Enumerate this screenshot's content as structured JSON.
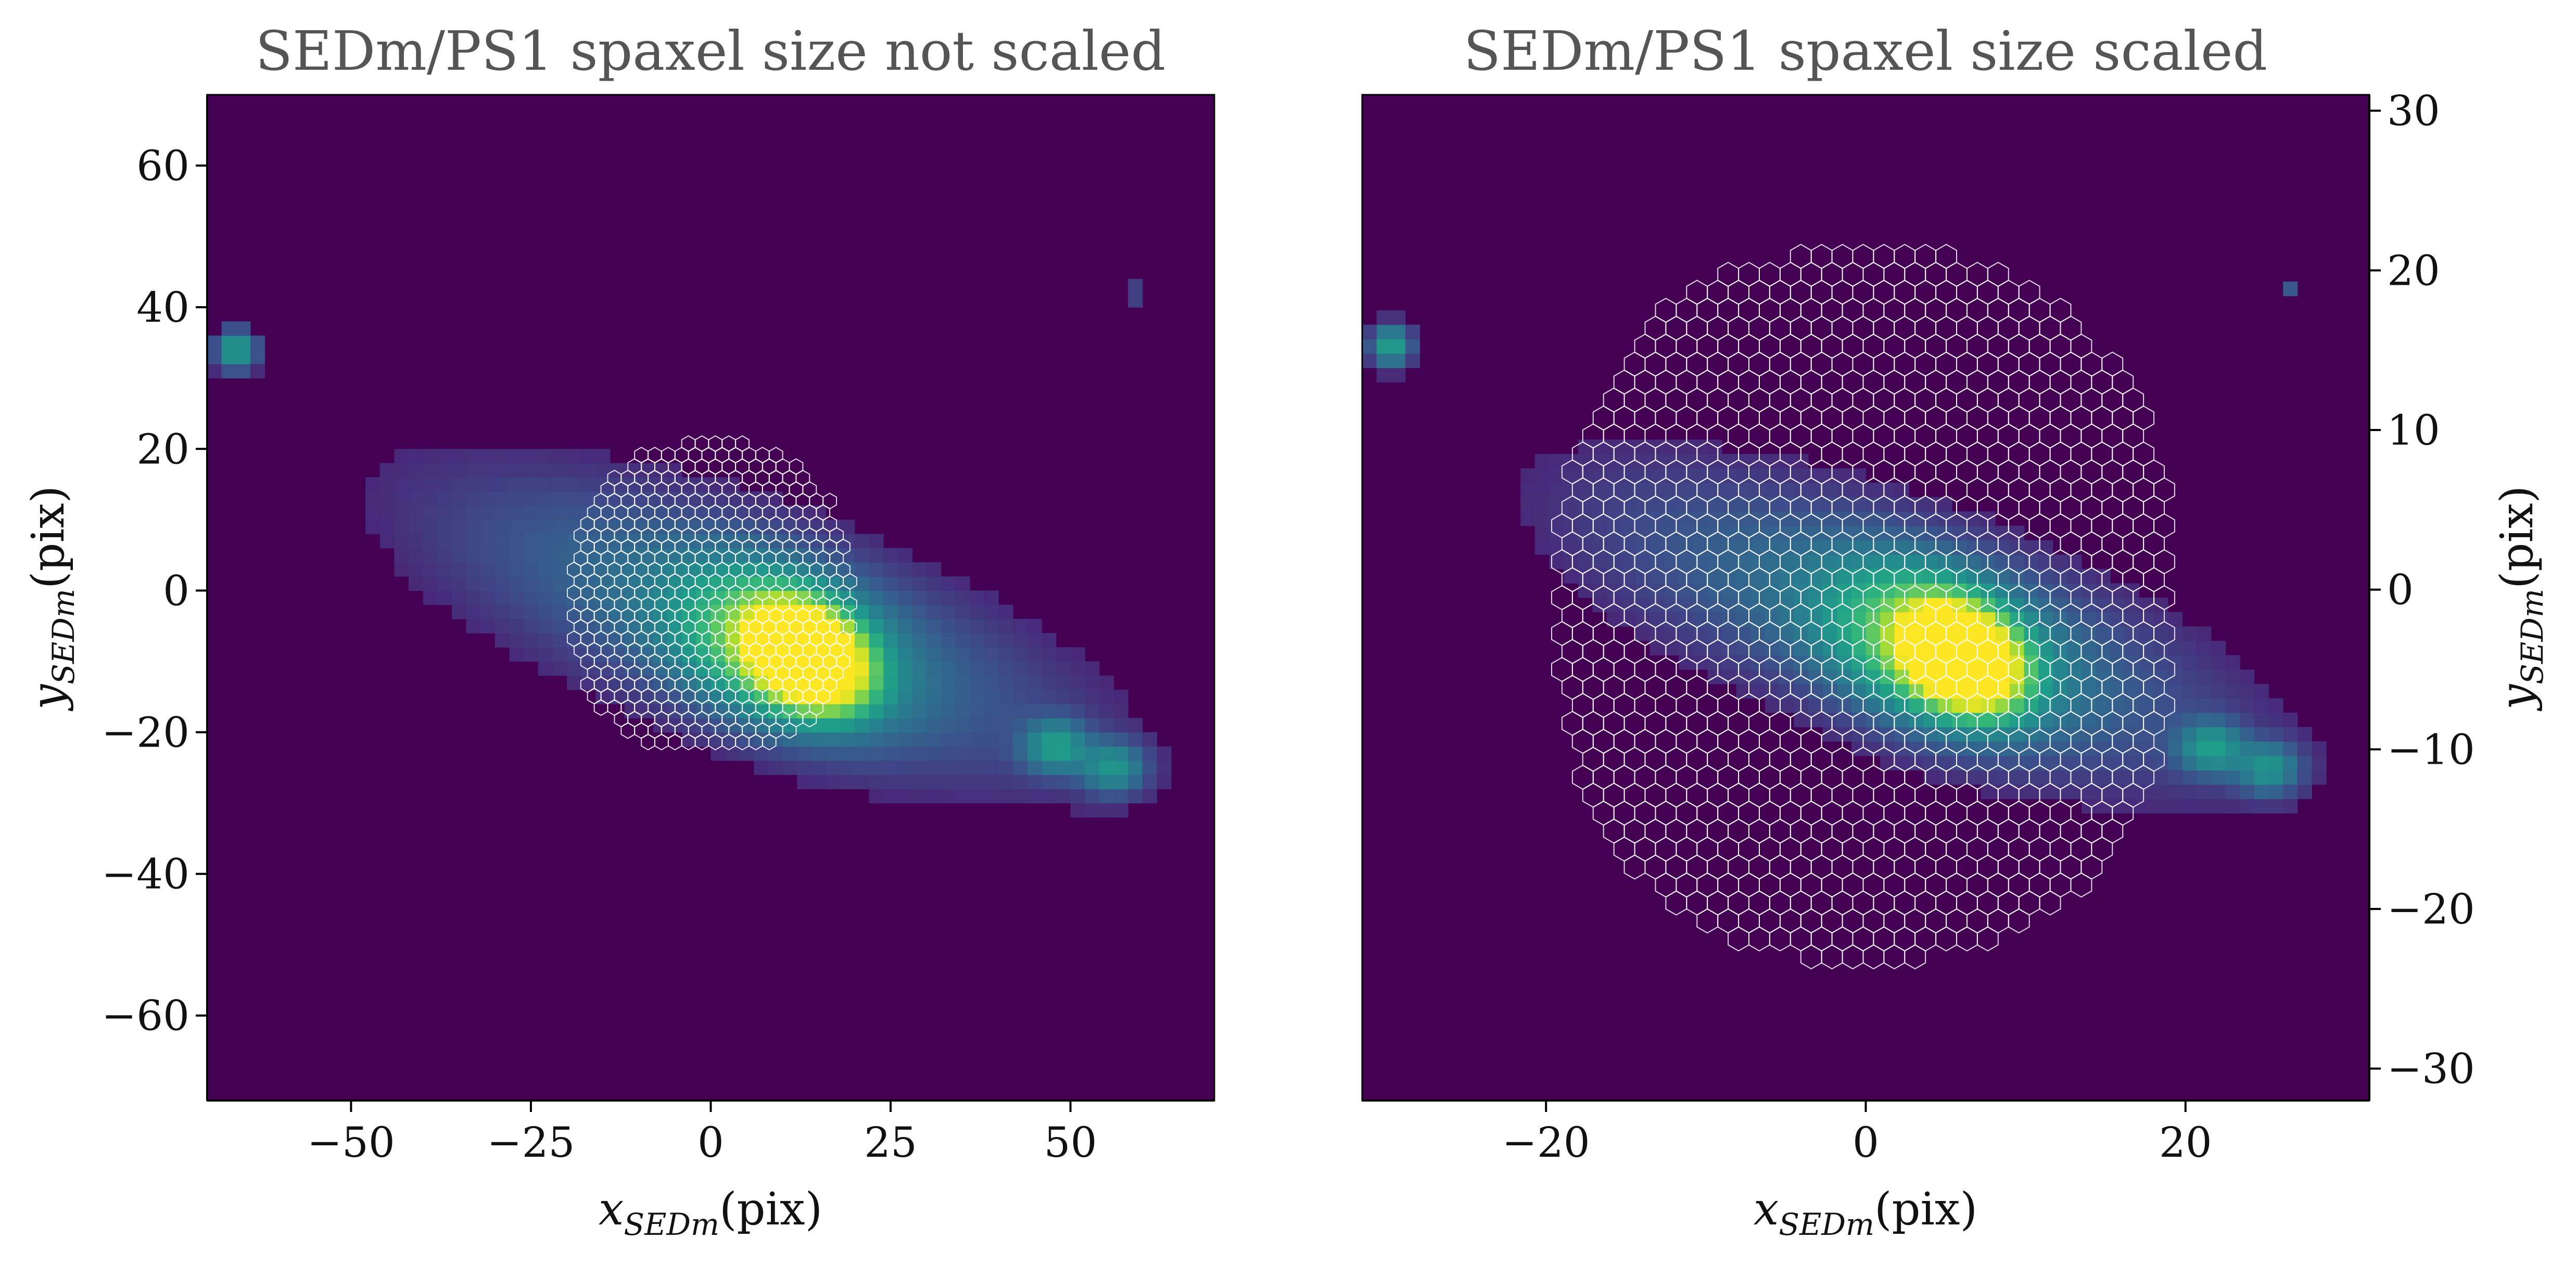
{
  "figure": {
    "colors": {
      "background": "#440154",
      "colormap": [
        "#440154",
        "#482878",
        "#3e4989",
        "#31688e",
        "#26828e",
        "#1f9e89",
        "#35b779",
        "#6ece58",
        "#b5de2b",
        "#fde725"
      ],
      "hexagon_outline": "#ffffff"
    }
  },
  "chart_data": [
    {
      "type": "heatmap",
      "title": "SEDm/PS1 spaxel size not scaled",
      "xlabel": "x_SEDm(pix)",
      "ylabel": "y_SEDm(pix)",
      "xlabel_main": "x",
      "xlabel_sub": "SEDm",
      "xlabel_unit": "(pix)",
      "ylabel_main": "y",
      "ylabel_sub": "SEDm",
      "ylabel_unit": "(pix)",
      "xlim": [
        -70,
        70
      ],
      "ylim": [
        -72,
        70
      ],
      "xticks": [
        -50,
        -25,
        0,
        25,
        50
      ],
      "yticks": [
        -60,
        -40,
        -20,
        0,
        20,
        40,
        60
      ],
      "xtick_labels": [
        "−50",
        "−25",
        "0",
        "25",
        "50"
      ],
      "ytick_labels": [
        "−60",
        "−40",
        "−20",
        "0",
        "20",
        "40",
        "60"
      ],
      "ytick_side": "left",
      "grid": false,
      "pixel_size": 2,
      "image_components": [
        {
          "kind": "core",
          "x": 13,
          "y": -9,
          "sx": 4.5,
          "sy": 3.2,
          "angle_deg": -32,
          "amp": 4.0
        },
        {
          "kind": "bulge",
          "x": 10,
          "y": -8,
          "sx": 9,
          "sy": 6,
          "angle_deg": -25,
          "amp": 0.6
        },
        {
          "kind": "disk",
          "x": 6,
          "y": -5,
          "sx": 32,
          "sy": 10,
          "angle_deg": -20,
          "amp": 0.2
        },
        {
          "kind": "knot",
          "x": 48,
          "y": -22,
          "sx": 3,
          "sy": 2.5,
          "angle_deg": 0,
          "amp": 0.28
        },
        {
          "kind": "knot",
          "x": 56,
          "y": -25,
          "sx": 3,
          "sy": 2.5,
          "angle_deg": 0,
          "amp": 0.26
        },
        {
          "kind": "star",
          "x": -66,
          "y": 34,
          "sx": 2,
          "sy": 2,
          "angle_deg": 0,
          "amp": 0.35
        },
        {
          "kind": "star",
          "x": 59,
          "y": 42,
          "sx": 1.2,
          "sy": 1,
          "angle_deg": 0,
          "amp": 0.12
        }
      ],
      "hexgrid": {
        "center": [
          0,
          -1
        ],
        "radius": 1.08,
        "xlim": [
          -19,
          20
        ],
        "ylim": [
          -23,
          21
        ]
      }
    },
    {
      "type": "heatmap",
      "title": "SEDm/PS1 spaxel size scaled",
      "xlabel": "x_SEDm(pix)",
      "ylabel": "y_SEDm(pix)",
      "xlabel_main": "x",
      "xlabel_sub": "SEDm",
      "xlabel_unit": "(pix)",
      "ylabel_main": "y",
      "ylabel_sub": "SEDm",
      "ylabel_unit": "(pix)",
      "xlim": [
        -31.5,
        31.5
      ],
      "ylim": [
        -32,
        31
      ],
      "xticks": [
        -20,
        0,
        20
      ],
      "yticks": [
        -30,
        -20,
        -10,
        0,
        10,
        20,
        30
      ],
      "xtick_labels": [
        "−20",
        "0",
        "20"
      ],
      "ytick_labels": [
        "−30",
        "−20",
        "−10",
        "0",
        "10",
        "20",
        "30"
      ],
      "ytick_side": "right",
      "grid": false,
      "pixel_size": 0.9,
      "image_components": [
        {
          "kind": "core",
          "x": 5.8,
          "y": -4.1,
          "sx": 2.0,
          "sy": 1.45,
          "angle_deg": -32,
          "amp": 4.0
        },
        {
          "kind": "bulge",
          "x": 4.5,
          "y": -3.6,
          "sx": 4.1,
          "sy": 2.7,
          "angle_deg": -25,
          "amp": 0.6
        },
        {
          "kind": "disk",
          "x": 2.7,
          "y": -2.3,
          "sx": 14.4,
          "sy": 4.5,
          "angle_deg": -20,
          "amp": 0.2
        },
        {
          "kind": "knot",
          "x": 21.6,
          "y": -9.9,
          "sx": 1.35,
          "sy": 1.1,
          "angle_deg": 0,
          "amp": 0.28
        },
        {
          "kind": "knot",
          "x": 25.2,
          "y": -11.2,
          "sx": 1.35,
          "sy": 1.1,
          "angle_deg": 0,
          "amp": 0.26
        },
        {
          "kind": "star",
          "x": -29.7,
          "y": 15.3,
          "sx": 0.9,
          "sy": 0.9,
          "angle_deg": 0,
          "amp": 0.35
        },
        {
          "kind": "star",
          "x": 26.5,
          "y": 18.9,
          "sx": 0.55,
          "sy": 0.45,
          "angle_deg": 0,
          "amp": 0.12
        }
      ],
      "hexgrid": {
        "center": [
          0,
          -1
        ],
        "radius": 0.75,
        "xlim": [
          -19,
          19.5
        ],
        "ylim": [
          -23,
          21.5
        ]
      }
    }
  ]
}
